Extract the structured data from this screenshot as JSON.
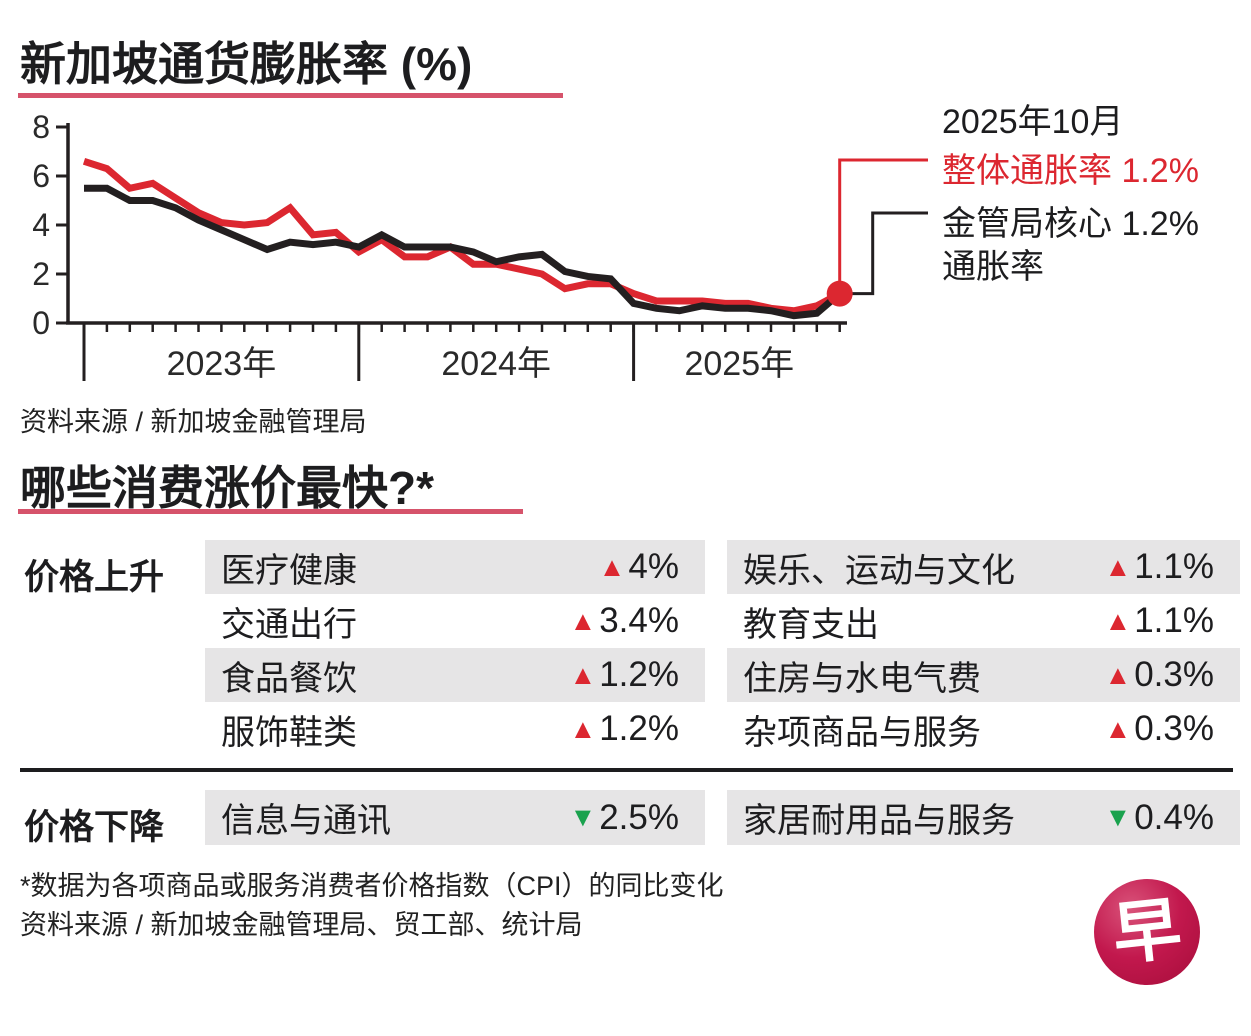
{
  "colors": {
    "headline_red": "#dc2730",
    "core_black": "#231f20",
    "underline_rose": "#d6536b",
    "down_green": "#1aa24e",
    "row_gray": "#e6e5e6"
  },
  "chart_section": {
    "title": "新加坡通货膨胀率 (%)",
    "source": "资料来源 / 新加坡金融管理局",
    "annotation": {
      "date": "2025年10月",
      "headline": "整体通胀率 1.2%",
      "core_line1": "金管局核心 1.2%",
      "core_line2": "通胀率"
    }
  },
  "chart_data": {
    "type": "line",
    "title": "新加坡通货膨胀率 (%)",
    "ylim": [
      0,
      8
    ],
    "yticks": [
      8,
      6,
      4,
      2,
      0
    ],
    "x_unit": "month",
    "x_range": "2023-01 to 2025-10",
    "year_labels": [
      "2023年",
      "2024年",
      "2025年"
    ],
    "months_per_year": [
      12,
      12,
      10
    ],
    "grid": false,
    "legend_position": "callout-right",
    "series": [
      {
        "name": "整体通胀率",
        "color": "#dc2730",
        "values": [
          6.6,
          6.3,
          5.5,
          5.7,
          5.1,
          4.5,
          4.1,
          4.0,
          4.1,
          4.7,
          3.6,
          3.7,
          2.9,
          3.4,
          2.7,
          2.7,
          3.1,
          2.4,
          2.4,
          2.2,
          2.0,
          1.4,
          1.6,
          1.6,
          1.2,
          0.9,
          0.9,
          0.9,
          0.8,
          0.8,
          0.6,
          0.5,
          0.7,
          1.2
        ]
      },
      {
        "name": "金管局核心通胀率",
        "color": "#231f20",
        "values": [
          5.5,
          5.5,
          5.0,
          5.0,
          4.7,
          4.2,
          3.8,
          3.4,
          3.0,
          3.3,
          3.2,
          3.3,
          3.1,
          3.6,
          3.1,
          3.1,
          3.1,
          2.9,
          2.5,
          2.7,
          2.8,
          2.1,
          1.9,
          1.8,
          0.8,
          0.6,
          0.5,
          0.7,
          0.6,
          0.6,
          0.5,
          0.3,
          0.4,
          1.2
        ]
      }
    ],
    "end_point": {
      "month": "2025年10月",
      "headline_pct": 1.2,
      "core_pct": 1.2
    }
  },
  "price_section": {
    "title": "哪些消费涨价最快?*",
    "up": {
      "label": "价格上升",
      "col1": [
        {
          "name": "医疗健康",
          "value": "4%"
        },
        {
          "name": "交通出行",
          "value": "3.4%"
        },
        {
          "name": "食品餐饮",
          "value": "1.2%"
        },
        {
          "name": "服饰鞋类",
          "value": "1.2%"
        }
      ],
      "col2": [
        {
          "name": "娱乐、运动与文化",
          "value": "1.1%"
        },
        {
          "name": "教育支出",
          "value": "1.1%"
        },
        {
          "name": "住房与水电气费",
          "value": "0.3%"
        },
        {
          "name": "杂项商品与服务",
          "value": "0.3%"
        }
      ]
    },
    "down": {
      "label": "价格下降",
      "col1": [
        {
          "name": "信息与通讯",
          "value": "2.5%"
        }
      ],
      "col2": [
        {
          "name": "家居耐用品与服务",
          "value": "0.4%"
        }
      ]
    },
    "footnote": "*数据为各项商品或服务消费者价格指数（CPI）的同比变化",
    "source": "资料来源 / 新加坡金融管理局、贸工部、统计局"
  },
  "icons": {
    "up": "▲",
    "down": "▼",
    "logo_glyph": "早"
  }
}
